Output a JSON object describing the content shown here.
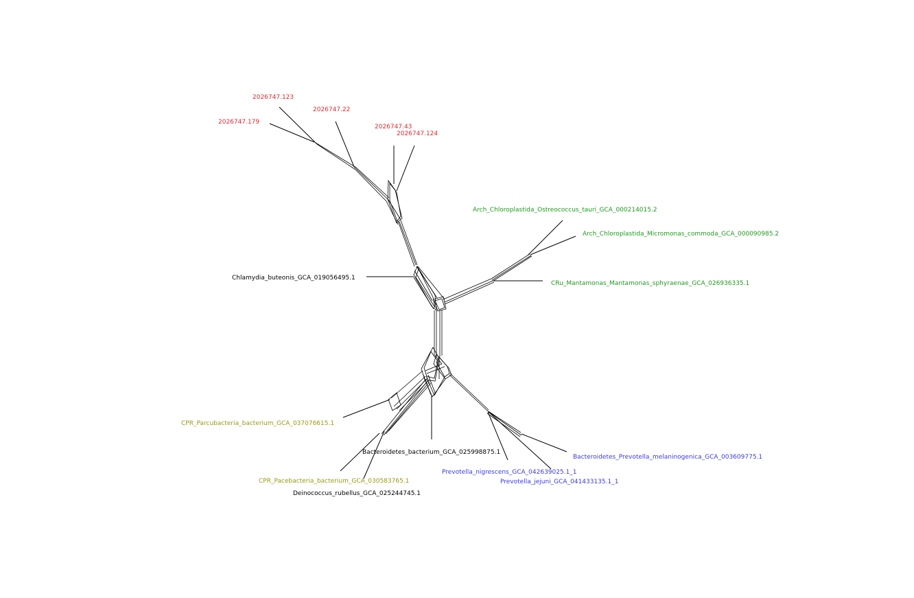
{
  "taxa": [
    {
      "id": "t_2026747_123",
      "label": "2026747.123",
      "color": "#e8262b"
    },
    {
      "id": "t_2026747_22",
      "label": "2026747.22",
      "color": "#e8262b"
    },
    {
      "id": "t_2026747_179",
      "label": "2026747.179",
      "color": "#e8262b"
    },
    {
      "id": "t_2026747_43",
      "label": "2026747.43",
      "color": "#e8262b"
    },
    {
      "id": "t_2026747_124",
      "label": "2026747.124",
      "color": "#e8262b"
    },
    {
      "id": "t_ostreococcus",
      "label": "Arch_Chloroplastida_Ostreococcus_tauri_GCA_000214015.2",
      "color": "#1f9a1f"
    },
    {
      "id": "t_micromonas",
      "label": "Arch_Chloroplastida_Micromonas_commoda_GCA_000090985.2",
      "color": "#1f9a1f"
    },
    {
      "id": "t_mantamonas",
      "label": "CRu_Mantamonas_Mantamonas_sphyraenae_GCA_026936335.1",
      "color": "#1f9a1f"
    },
    {
      "id": "t_chlamydia",
      "label": "Chlamydia_buteonis_GCA_019056495.1",
      "color": "#000000"
    },
    {
      "id": "t_parcubacteria",
      "label": "CPR_Parcubacteria_bacterium_GCA_037076615.1",
      "color": "#9a9a10"
    },
    {
      "id": "t_bacteroidetes_bact",
      "label": "Bacteroidetes_bacterium_GCA_025998875.1",
      "color": "#000000"
    },
    {
      "id": "t_pacebacteria",
      "label": "CPR_Pacebacteria_bacterium_GCA_030583765.1",
      "color": "#9a9a10"
    },
    {
      "id": "t_deinococcus",
      "label": "Deinococcus_rubellus_GCA_025244745.1",
      "color": "#000000"
    },
    {
      "id": "t_prev_melanino",
      "label": "Bacteroidetes_Prevotella_melaninogenica_GCA_003609775.1",
      "color": "#3a3adf"
    },
    {
      "id": "t_prev_nigrescens",
      "label": "Prevotella_nigrescens_GCA_042639025.1_1",
      "color": "#3a3adf"
    },
    {
      "id": "t_prev_jejuni",
      "label": "Prevotella_jejuni_GCA_041433135.1_1",
      "color": "#3a3adf"
    }
  ]
}
